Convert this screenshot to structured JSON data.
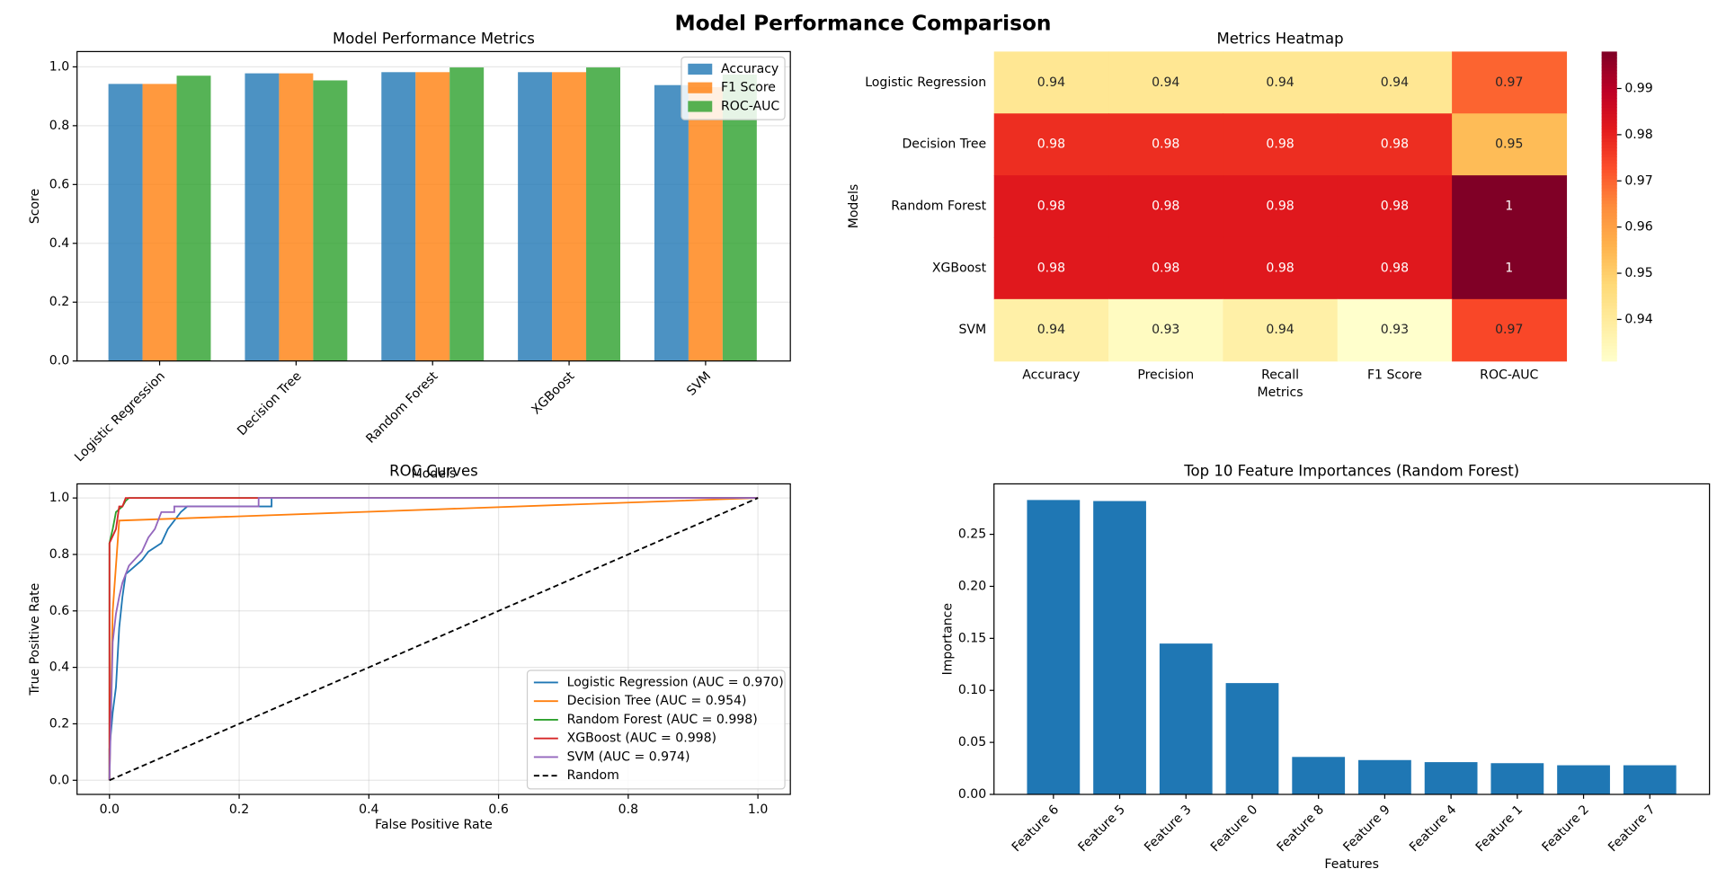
{
  "title": "Model Performance Comparison",
  "chart_data": [
    {
      "type": "bar",
      "title": "Model Performance Metrics",
      "xlabel": "Models",
      "ylabel": "Score",
      "categories": [
        "Logistic Regression",
        "Decision Tree",
        "Random Forest",
        "XGBoost",
        "SVM"
      ],
      "series": [
        {
          "name": "Accuracy",
          "color": "#1f77b4",
          "values": [
            0.942,
            0.978,
            0.982,
            0.982,
            0.938
          ]
        },
        {
          "name": "F1 Score",
          "color": "#ff7f0e",
          "values": [
            0.942,
            0.978,
            0.982,
            0.982,
            0.931
          ]
        },
        {
          "name": "ROC-AUC",
          "color": "#2ca02c",
          "values": [
            0.97,
            0.954,
            0.998,
            0.998,
            0.974
          ]
        }
      ],
      "ylim": [
        0,
        1.052
      ],
      "yticks": [
        {
          "value": 0,
          "label": "0.0"
        },
        {
          "value": 0.2,
          "label": "0.2"
        },
        {
          "value": 0.4,
          "label": "0.4"
        },
        {
          "value": 0.6,
          "label": "0.6"
        },
        {
          "value": 0.8,
          "label": "0.8"
        },
        {
          "value": 1,
          "label": "1.0"
        }
      ],
      "grid": true,
      "legend": "upper right"
    },
    {
      "type": "heatmap",
      "title": "Metrics Heatmap",
      "xlabel": "Metrics",
      "ylabel": "Models",
      "x_categories": [
        "Accuracy",
        "Precision",
        "Recall",
        "F1 Score",
        "ROC-AUC"
      ],
      "y_categories": [
        "Logistic Regression",
        "Decision Tree",
        "Random Forest",
        "XGBoost",
        "SVM"
      ],
      "values": [
        [
          0.942,
          0.942,
          0.942,
          0.942,
          0.97
        ],
        [
          0.978,
          0.978,
          0.978,
          0.978,
          0.954
        ],
        [
          0.982,
          0.982,
          0.982,
          0.982,
          0.998
        ],
        [
          0.982,
          0.982,
          0.982,
          0.982,
          0.998
        ],
        [
          0.938,
          0.933,
          0.938,
          0.931,
          0.974
        ]
      ],
      "value_labels": [
        [
          "0.94",
          "0.94",
          "0.94",
          "0.94",
          "0.97"
        ],
        [
          "0.98",
          "0.98",
          "0.98",
          "0.98",
          "0.95"
        ],
        [
          "0.98",
          "0.98",
          "0.98",
          "0.98",
          "1"
        ],
        [
          "0.98",
          "0.98",
          "0.98",
          "0.98",
          "1"
        ],
        [
          "0.94",
          "0.93",
          "0.94",
          "0.93",
          "0.97"
        ]
      ],
      "colormap": "YlOrRd",
      "clim": [
        0.931,
        0.998
      ],
      "colorbar_ticks": [
        0.94,
        0.95,
        0.96,
        0.97,
        0.98,
        0.99
      ]
    },
    {
      "type": "line",
      "title": "ROC Curves",
      "xlabel": "False Positive Rate",
      "ylabel": "True Positive Rate",
      "series": [
        {
          "name": "Logistic Regression (AUC = 0.970)",
          "color": "#1f77b4",
          "x": [
            0,
            0,
            0.005,
            0.01,
            0.015,
            0.02,
            0.025,
            0.04,
            0.05,
            0.06,
            0.08,
            0.09,
            0.1,
            0.11,
            0.12,
            0.25,
            0.25,
            1
          ],
          "values": [
            0,
            0.11,
            0.24,
            0.33,
            0.54,
            0.65,
            0.73,
            0.76,
            0.78,
            0.81,
            0.84,
            0.89,
            0.92,
            0.95,
            0.97,
            0.97,
            1,
            1
          ]
        },
        {
          "name": "Decision Tree (AUC = 0.954)",
          "color": "#ff7f0e",
          "x": [
            0,
            0.005,
            0.015,
            1
          ],
          "values": [
            0,
            0.6,
            0.92,
            1
          ]
        },
        {
          "name": "Random Forest (AUC = 0.998)",
          "color": "#2ca02c",
          "x": [
            0,
            0,
            0.005,
            0.01,
            0.02,
            0.025,
            0.03,
            1
          ],
          "values": [
            0,
            0.84,
            0.89,
            0.95,
            0.97,
            0.99,
            1,
            1
          ]
        },
        {
          "name": "XGBoost (AUC = 0.998)",
          "color": "#d62728",
          "x": [
            0,
            0,
            0.01,
            0.015,
            0.02,
            0.025,
            1
          ],
          "values": [
            0,
            0.84,
            0.89,
            0.97,
            0.97,
            1,
            1
          ]
        },
        {
          "name": "SVM (AUC = 0.974)",
          "color": "#9467bd",
          "x": [
            0,
            0.005,
            0.01,
            0.015,
            0.02,
            0.03,
            0.05,
            0.06,
            0.07,
            0.08,
            0.1,
            0.1,
            0.23,
            0.23,
            1
          ],
          "values": [
            0,
            0.49,
            0.59,
            0.65,
            0.7,
            0.76,
            0.81,
            0.86,
            0.89,
            0.95,
            0.95,
            0.97,
            0.97,
            1,
            1
          ]
        },
        {
          "name": "Random",
          "color": "#000000",
          "linestyle": "dashed",
          "x": [
            0,
            1
          ],
          "values": [
            0,
            1
          ]
        }
      ],
      "xlim": [
        -0.05,
        1.05
      ],
      "ylim": [
        -0.05,
        1.05
      ],
      "xticks": [
        {
          "value": 0,
          "label": "0.0"
        },
        {
          "value": 0.2,
          "label": "0.2"
        },
        {
          "value": 0.4,
          "label": "0.4"
        },
        {
          "value": 0.6,
          "label": "0.6"
        },
        {
          "value": 0.8,
          "label": "0.8"
        },
        {
          "value": 1,
          "label": "1.0"
        }
      ],
      "yticks": [
        {
          "value": 0,
          "label": "0.0"
        },
        {
          "value": 0.2,
          "label": "0.2"
        },
        {
          "value": 0.4,
          "label": "0.4"
        },
        {
          "value": 0.6,
          "label": "0.6"
        },
        {
          "value": 0.8,
          "label": "0.8"
        },
        {
          "value": 1,
          "label": "1.0"
        }
      ],
      "grid": true,
      "legend": "lower right"
    },
    {
      "type": "bar",
      "title": "Top 10 Feature Importances (Random Forest)",
      "xlabel": "Features",
      "ylabel": "Importance",
      "categories": [
        "Feature 6",
        "Feature 5",
        "Feature 3",
        "Feature 0",
        "Feature 8",
        "Feature 9",
        "Feature 4",
        "Feature 1",
        "Feature 2",
        "Feature 7"
      ],
      "values": [
        0.283,
        0.282,
        0.145,
        0.107,
        0.036,
        0.033,
        0.031,
        0.03,
        0.028,
        0.028
      ],
      "color": "#1f77b4",
      "ylim": [
        0,
        0.2985
      ],
      "yticks": [
        {
          "value": 0,
          "label": "0.00"
        },
        0.05,
        {
          "value": 0.1,
          "label": "0.10"
        },
        0.15,
        {
          "value": 0.2,
          "label": "0.20"
        },
        0.25
      ],
      "grid": false
    }
  ]
}
